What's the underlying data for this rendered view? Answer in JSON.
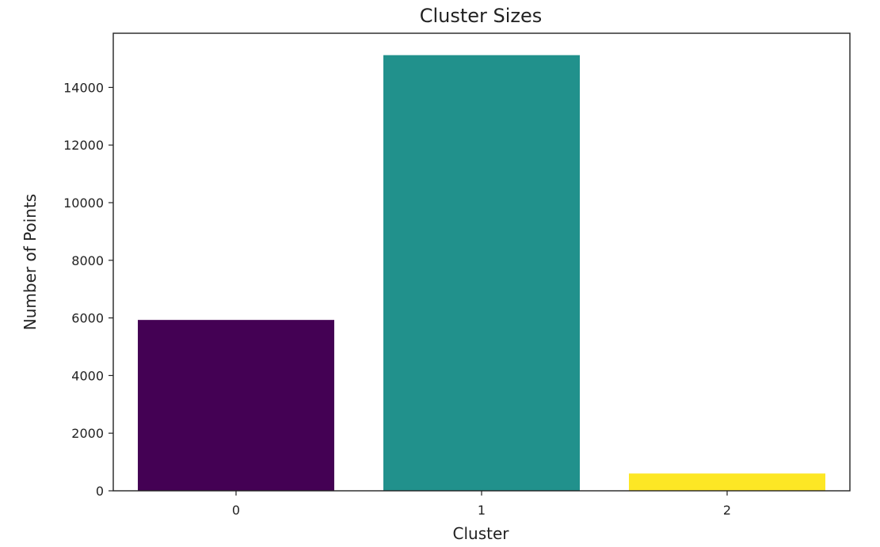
{
  "chart_data": {
    "type": "bar",
    "title": "Cluster Sizes",
    "xlabel": "Cluster",
    "ylabel": "Number of Points",
    "categories": [
      "0",
      "1",
      "2"
    ],
    "values": [
      5930,
      15120,
      600
    ],
    "colors": [
      "#440154",
      "#21918c",
      "#fde725"
    ],
    "ylim": [
      0,
      15880
    ],
    "yticks": [
      0,
      2000,
      4000,
      6000,
      8000,
      10000,
      12000,
      14000
    ],
    "grid": false,
    "legend": "none"
  }
}
